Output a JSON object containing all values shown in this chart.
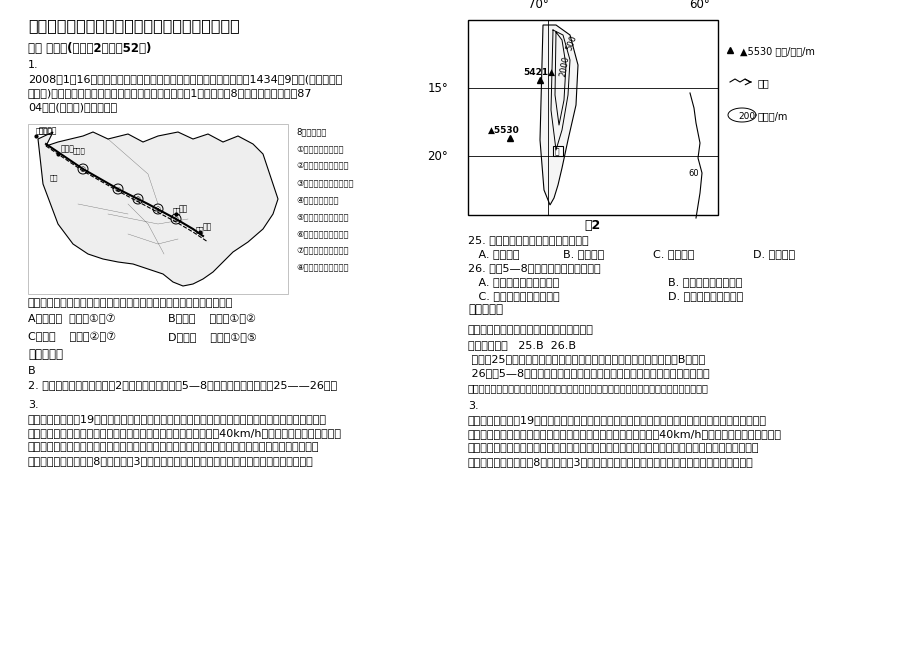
{
  "bg_color": "#ffffff",
  "title": "黑龙江省绥化市新胜中学高三地理模拟试卷含解析",
  "section1": "一、 选择题(每小题2分，共52分)",
  "q1_label": "1.",
  "q1_line1": "2008年1月16日在深圳召开的中国液化天然气国际会议上，总投资为1434．9亿元(不合关税和",
  "q1_line2": "增值税)的西气东输二线建设方案基本敲定。该工程包括1条主干线和8条支干线，管线全长87",
  "q1_line3": "04公里(如下图)。读图回答",
  "q2_label": "西气东输二线的主要气源地与图中提供调峰和补充气源的支干线分别是",
  "choices1a": "A．俄罗斯  支干线①和⑦",
  "choices1b": "B．中亚    支干线①和②",
  "choices2a": "C．西亚    支干线②和⑦",
  "choices2b": "D．中亚    支干线①和⑤",
  "answer_label": "参考答案：",
  "answer_b": "B",
  "q2_intro": "2. 读下图，甲地（位置见图2）气温年变化较小，5—8月降水稀少。据此完成25——26题。",
  "q25": "25. 甲地气温年较差较小的主要原因是",
  "q25a": "   A. 海拔较高",
  "q25b": "B. 纬度较低",
  "q25c": "C. 距海较远",
  "q25d": "D. 植被较好",
  "q26": "26. 甲地5—8月降水稀少的主要原因是",
  "q26a": "   A. 处于盛行西风的背风坡",
  "q26b": "B. 受副热带高气压控制",
  "q26c": "   C. 受干燥的东北信风影响",
  "q26d": "D. 受高纬干冷气流控制",
  "answer_label2": "参考答案：",
  "knowledge": "【知识点】本题考查年较差和气压带风带。",
  "answer_detail": "【答案解析】   25.B  26.B",
  "analysis1": " 解析：25题，纬度越低，气温年较差越小，且是最主要的原因，所以B正确。",
  "analysis2": " 26题，5—8月副热带高气压带移动到这里，盛行下沉气流，所以降水较少。",
  "hint": "【易错点拨】赤道地区年较差小，极地年较差大；副高影响某地，气流下沉，一般降水较少。",
  "q3_label": "3.",
  "q3_line1": "匈塞铁路，始建于19世纪末，是一条老旧的单轨铁路，连接匈牙利首都和塞尔维亚首都，沿线地形以",
  "q3_line2": "平原为主。匈塞铁路由于设备落后，线路老化严重，运行时速只有40km/h一度被认为是欧洲最慢的火",
  "q3_line3": "车。中国某公司将把该铁路升级改造为电气化客货混线双轨铁路，该铁路改造完成后，两国首都之间",
  "q3_line4": "的运行时间将从目前的8小时缩短至3小时内。下图为匈塞铁路线路示意图。据此完成下列各题。",
  "fig2_label": "图2",
  "legend1": "▲5530 山峰/高程/m",
  "legend2": "河流",
  "legend3": "200",
  "legend3b": "等高线/m",
  "map_cap0": "8条支线为：",
  "map_cap1": "①新疆轮南至吐鲁番",
  "map_cap2": "②宁夏中卫至陕西靖边",
  "map_cap3": "③刘陕西府谷至孟津奉章",
  "map_cap4": "④江西南昌至上海",
  "map_cap5": "⑤江西瑞都节湖南湘潭",
  "map_cap6": "⑥广东靖重至深圳奉章",
  "map_cap7": "⑦广东广州至广西南宁",
  "map_cap8": "⑧广东惠来至湛江海口"
}
